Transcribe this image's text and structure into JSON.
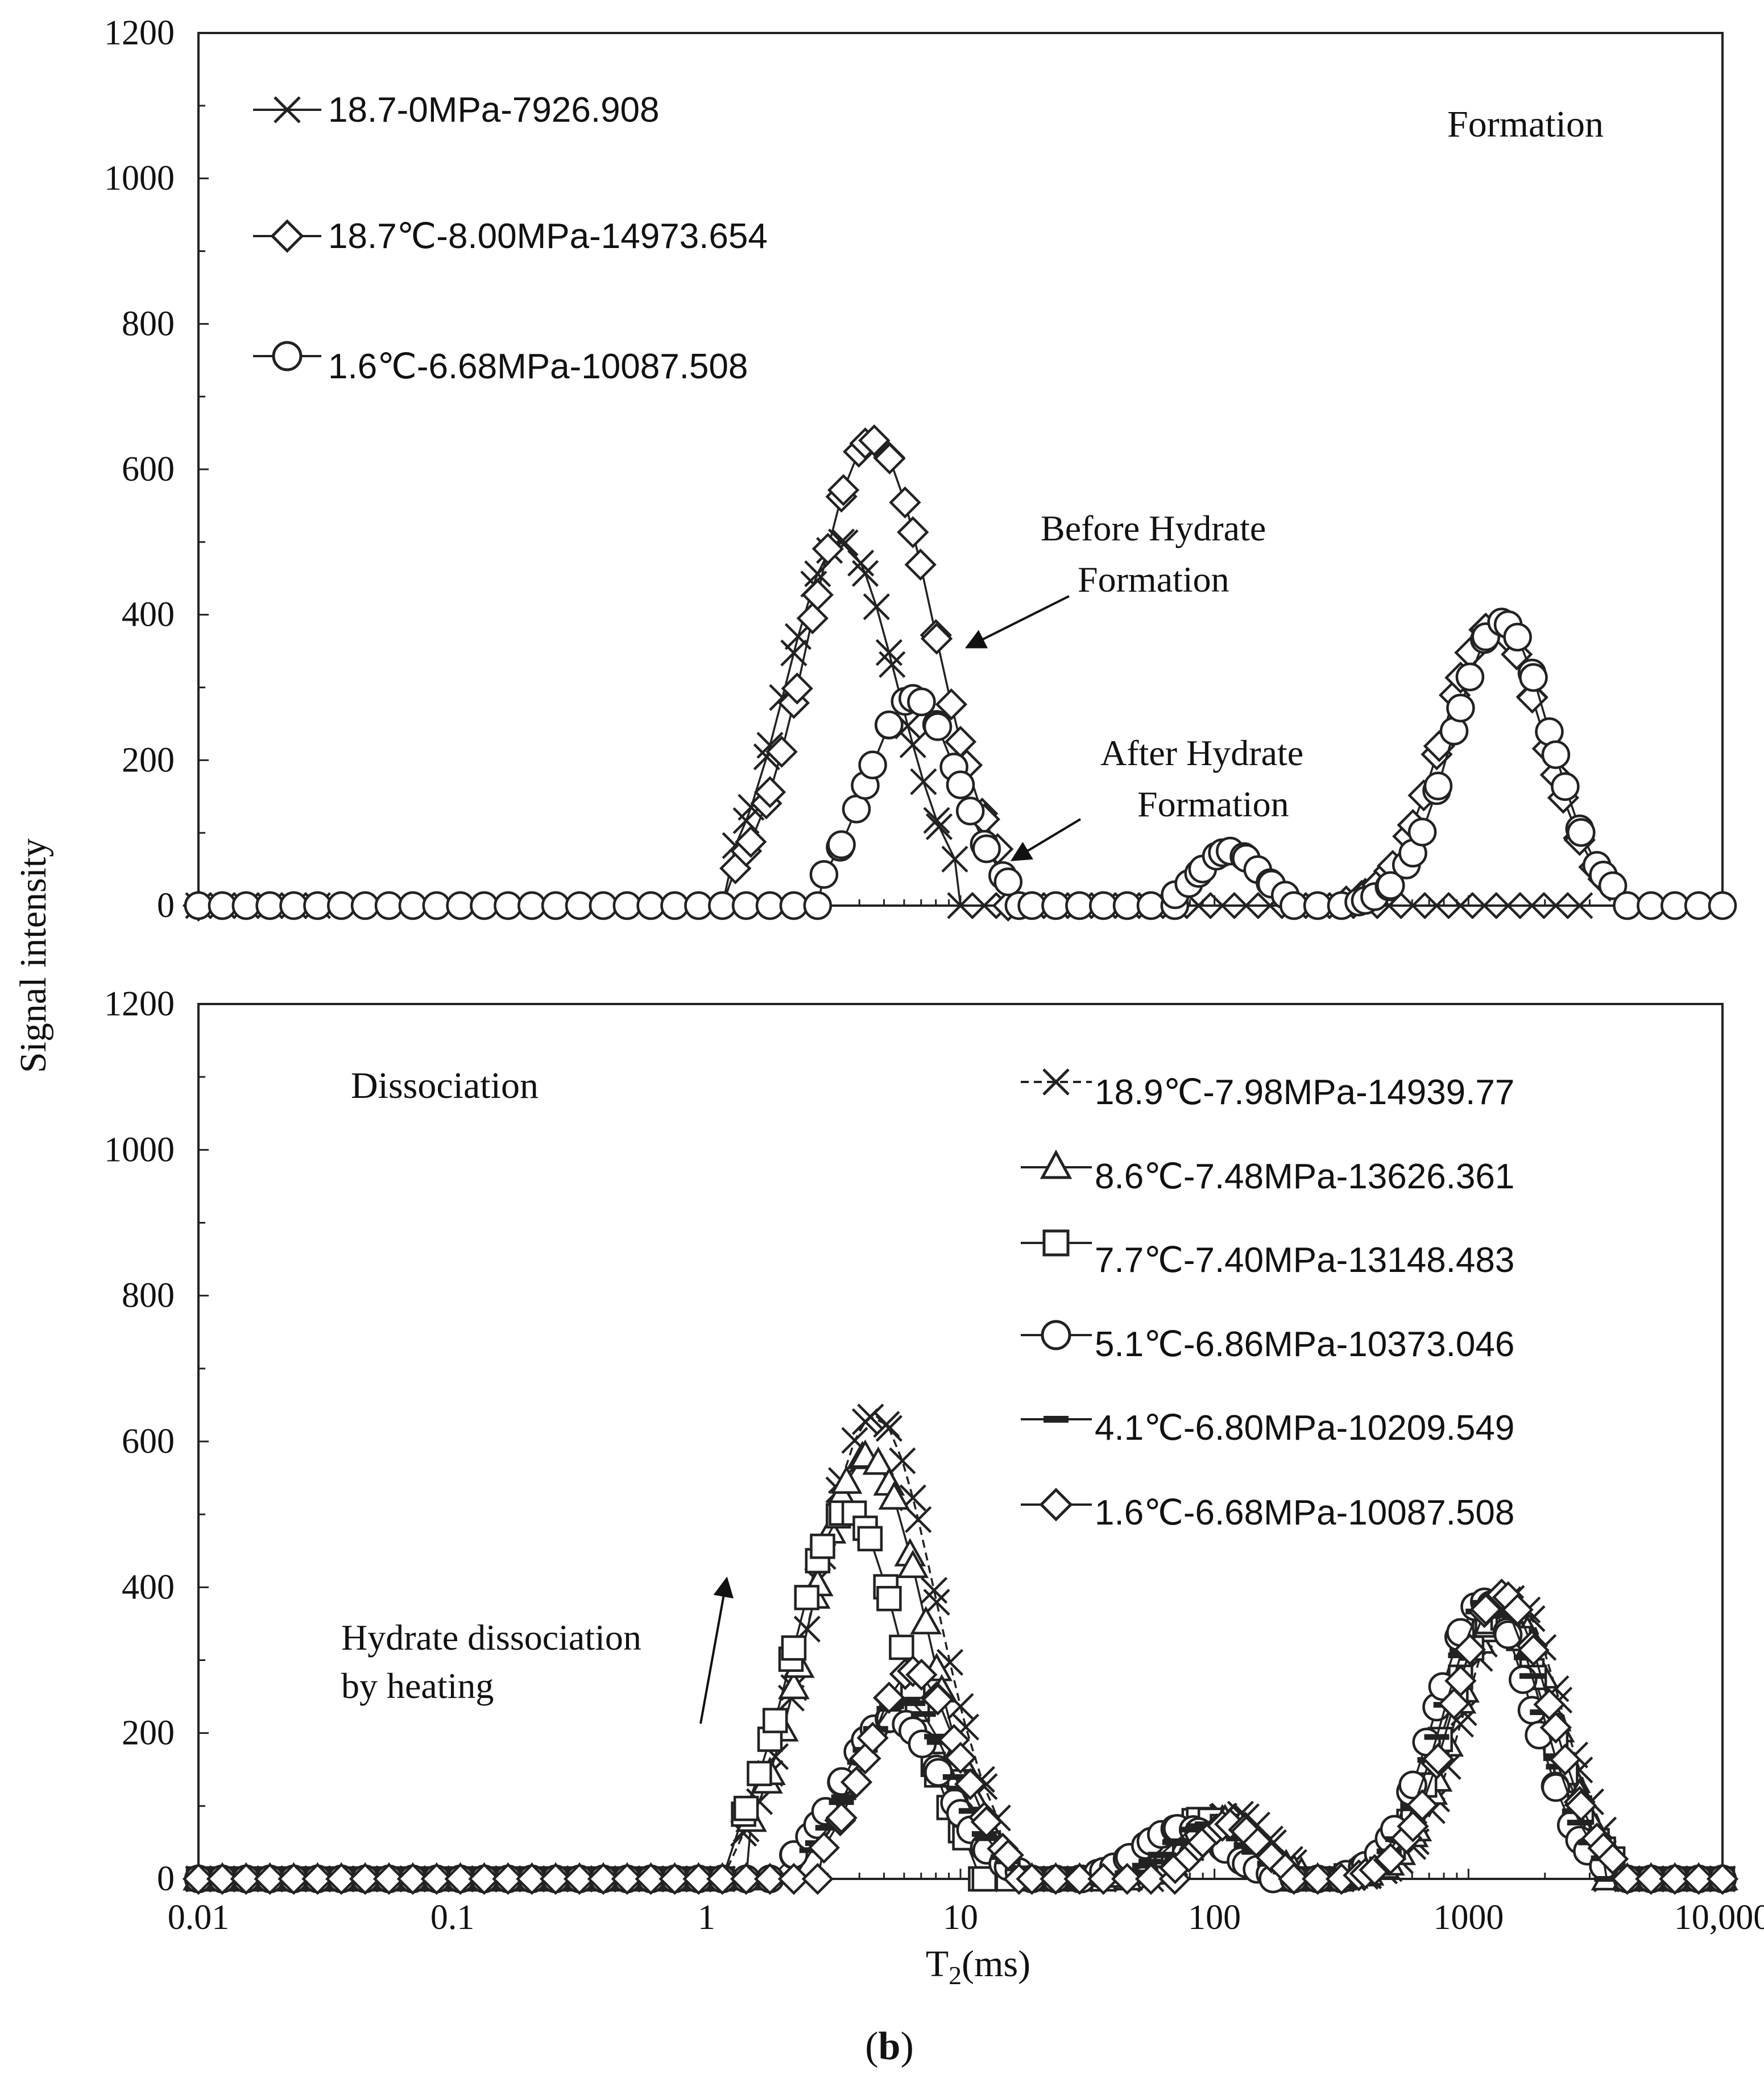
{
  "figure": {
    "caption_open": "(",
    "caption_letter": "b",
    "caption_close": ")"
  },
  "shared_axes": {
    "xlabel_main": "T",
    "xlabel_sub": "2",
    "xlabel_unit": "(ms)",
    "ylabel": "Signal intensity",
    "x_ticks": [
      {
        "value": 0.01,
        "label": "0.01"
      },
      {
        "value": 0.1,
        "label": "0.1"
      },
      {
        "value": 1,
        "label": "1"
      },
      {
        "value": 10,
        "label": "10"
      },
      {
        "value": 100,
        "label": "100"
      },
      {
        "value": 1000,
        "label": "1000"
      },
      {
        "value": 10000,
        "label": "10,000"
      }
    ],
    "y_ticks": [
      {
        "value": 0,
        "label": "0"
      },
      {
        "value": 200,
        "label": "200"
      },
      {
        "value": 400,
        "label": "400"
      },
      {
        "value": 600,
        "label": "600"
      },
      {
        "value": 800,
        "label": "800"
      },
      {
        "value": 1000,
        "label": "1000"
      },
      {
        "value": 1200,
        "label": "1200"
      }
    ]
  },
  "chart_data": [
    {
      "type": "line",
      "title": "Formation",
      "xscale": "log",
      "xlim": [
        0.01,
        10000
      ],
      "ylim": [
        0,
        1200
      ],
      "legend_position": "top-left",
      "annotations": [
        {
          "id": "before",
          "lines": [
            "Before Hydrate",
            "Formation"
          ],
          "arrow_to": {
            "x": 10,
            "y": 340
          }
        },
        {
          "id": "after",
          "lines": [
            "After Hydrate",
            "Formation"
          ],
          "arrow_to": {
            "x": 16,
            "y": 55
          }
        }
      ],
      "series": [
        {
          "name": "18.7-0MPa-7926.908",
          "marker": "x",
          "peaks": [
            {
              "center": 3.4,
              "amp": 500,
              "width": 0.22,
              "range": [
                1.3,
                9.5
              ]
            }
          ],
          "x_range": [
            0.01,
            3000
          ],
          "x_skip": [
            [
              0.03,
              8
            ]
          ]
        },
        {
          "name": "18.7℃-8.00MPa-14973.654",
          "marker": "diamond",
          "peaks": [
            {
              "center": 4.5,
              "amp": 640,
              "width": 0.24,
              "range": [
                1.3,
                14
              ]
            },
            {
              "center": 1250,
              "amp": 385,
              "width": 0.2,
              "range": [
                330,
                3600
              ]
            }
          ],
          "x_range": [
            0.01,
            3600
          ],
          "x_skip": [
            [
              0.01,
              3.0
            ],
            [
              17,
              330
            ]
          ]
        },
        {
          "name": "1.6℃-6.68MPa-10087.508",
          "marker": "circle",
          "peaks": [
            {
              "center": 6.5,
              "amp": 285,
              "width": 0.18,
              "range": [
                2.9,
                17
              ]
            },
            {
              "center": 115,
              "amp": 75,
              "width": 0.12,
              "range": [
                70,
                190
              ]
            },
            {
              "center": 1350,
              "amp": 390,
              "width": 0.19,
              "range": [
                370,
                3700
              ]
            }
          ],
          "x_range": [
            0.01,
            10000
          ],
          "x_skip": []
        }
      ]
    },
    {
      "type": "line",
      "title": "Dissociation",
      "xscale": "log",
      "xlim": [
        0.01,
        10000
      ],
      "ylim": [
        0,
        1200
      ],
      "legend_position": "top-right",
      "annotations": [
        {
          "id": "heating",
          "lines": [
            "Hydrate dissociation",
            "by heating"
          ],
          "arrow_from": {
            "x": 1.0,
            "y": 200
          },
          "arrow_to": {
            "x": 1.12,
            "y": 410
          }
        }
      ],
      "series": [
        {
          "name": "18.9℃-7.98MPa-14939.77",
          "marker": "x",
          "dashed": true,
          "peaks": [
            {
              "center": 4.6,
              "amp": 635,
              "width": 0.24,
              "range": [
                1.4,
                14
              ]
            },
            {
              "center": 120,
              "amp": 90,
              "width": 0.14,
              "range": [
                60,
                230
              ]
            },
            {
              "center": 1500,
              "amp": 385,
              "width": 0.19,
              "range": [
                350,
                3500
              ]
            }
          ]
        },
        {
          "name": "8.6℃-7.48MPa-13626.361",
          "marker": "triangle",
          "peaks": [
            {
              "center": 4.3,
              "amp": 580,
              "width": 0.23,
              "range": [
                1.5,
                13
              ]
            },
            {
              "center": 110,
              "amp": 80,
              "width": 0.14,
              "range": [
                55,
                220
              ]
            },
            {
              "center": 1400,
              "amp": 375,
              "width": 0.19,
              "range": [
                350,
                3500
              ]
            }
          ]
        },
        {
          "name": "7.7℃-7.40MPa-13148.483",
          "marker": "square",
          "peaks": [
            {
              "center": 3.6,
              "amp": 505,
              "width": 0.22,
              "range": [
                1.4,
                12
              ]
            },
            {
              "center": 90,
              "amp": 82,
              "width": 0.15,
              "range": [
                40,
                200
              ]
            },
            {
              "center": 1300,
              "amp": 360,
              "width": 0.2,
              "range": [
                330,
                3700
              ]
            }
          ]
        },
        {
          "name": "5.1℃-6.86MPa-10373.046",
          "marker": "circle",
          "peaks": [
            {
              "center": 5.4,
              "amp": 220,
              "width": 0.2,
              "range": [
                2.2,
                17
              ]
            },
            {
              "center": 75,
              "amp": 70,
              "width": 0.16,
              "range": [
                30,
                170
              ]
            },
            {
              "center": 1150,
              "amp": 380,
              "width": 0.19,
              "range": [
                330,
                3400
              ]
            }
          ]
        },
        {
          "name": "4.1℃-6.80MPa-10209.549",
          "marker": "dash",
          "peaks": [
            {
              "center": 6.0,
              "amp": 245,
              "width": 0.19,
              "range": [
                2.6,
                17
              ]
            },
            {
              "center": 95,
              "amp": 75,
              "width": 0.15,
              "range": [
                40,
                190
              ]
            },
            {
              "center": 1250,
              "amp": 385,
              "width": 0.19,
              "range": [
                340,
                3500
              ]
            }
          ]
        },
        {
          "name": "1.6℃-6.68MPa-10087.508",
          "marker": "diamond",
          "peaks": [
            {
              "center": 6.5,
              "amp": 285,
              "width": 0.18,
              "range": [
                2.9,
                17
              ]
            },
            {
              "center": 115,
              "amp": 75,
              "width": 0.12,
              "range": [
                70,
                190
              ]
            },
            {
              "center": 1350,
              "amp": 390,
              "width": 0.19,
              "range": [
                370,
                3700
              ]
            }
          ]
        }
      ]
    }
  ]
}
